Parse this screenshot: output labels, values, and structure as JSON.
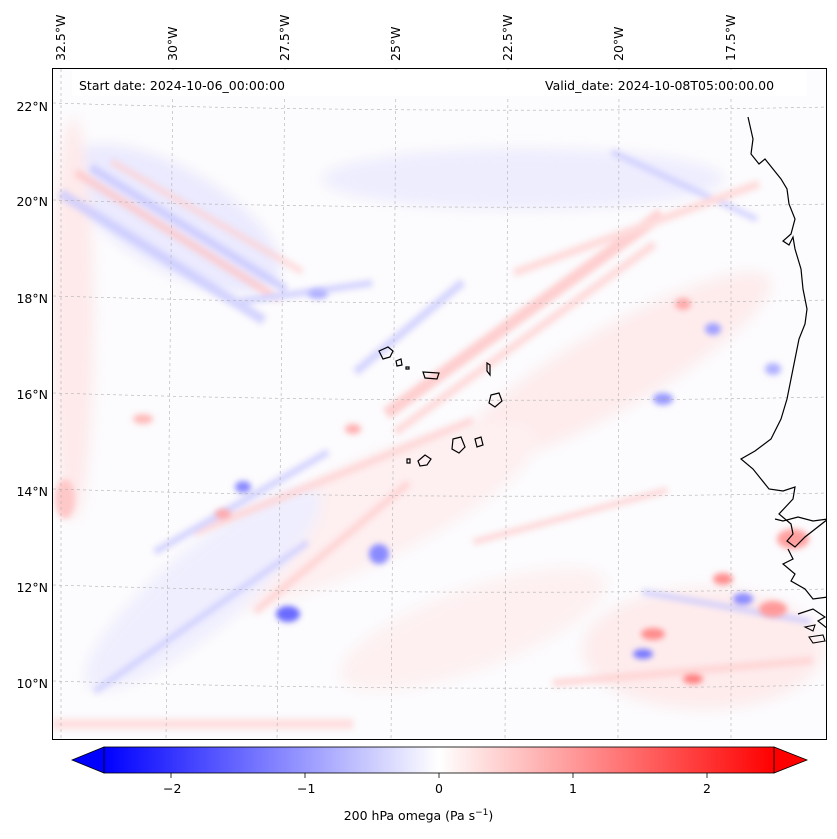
{
  "header": {
    "start_date": "Start date: 2024-10-06_00:00:00",
    "valid_date": "Valid_date: 2024-10-08T05:00:00.00"
  },
  "map": {
    "field": "200 hPa omega",
    "lon_labels": [
      "32.5°W",
      "30°W",
      "27.5°W",
      "25°W",
      "22.5°W",
      "20°W",
      "17.5°W"
    ],
    "lat_labels": [
      "22°N",
      "20°N",
      "18°N",
      "16°N",
      "14°N",
      "12°N",
      "10°N"
    ],
    "extent": {
      "lon_min": -33.2,
      "lon_max": -16.0,
      "lat_min": 8.8,
      "lat_max": 22.8
    },
    "colors": {
      "negative": "#0000ff",
      "zero": "#ffffff",
      "positive": "#ff0000",
      "coastline": "#000000",
      "grid": "#b0b0b0"
    }
  },
  "colorbar": {
    "ticks": [
      "−2",
      "−1",
      "0",
      "1",
      "2"
    ],
    "tick_values": [
      -2,
      -1,
      0,
      1,
      2
    ],
    "range": [
      -2.5,
      2.5
    ],
    "label": "200 hPa omega (Pa s",
    "label_sup": "−1",
    "label_end": ")"
  }
}
